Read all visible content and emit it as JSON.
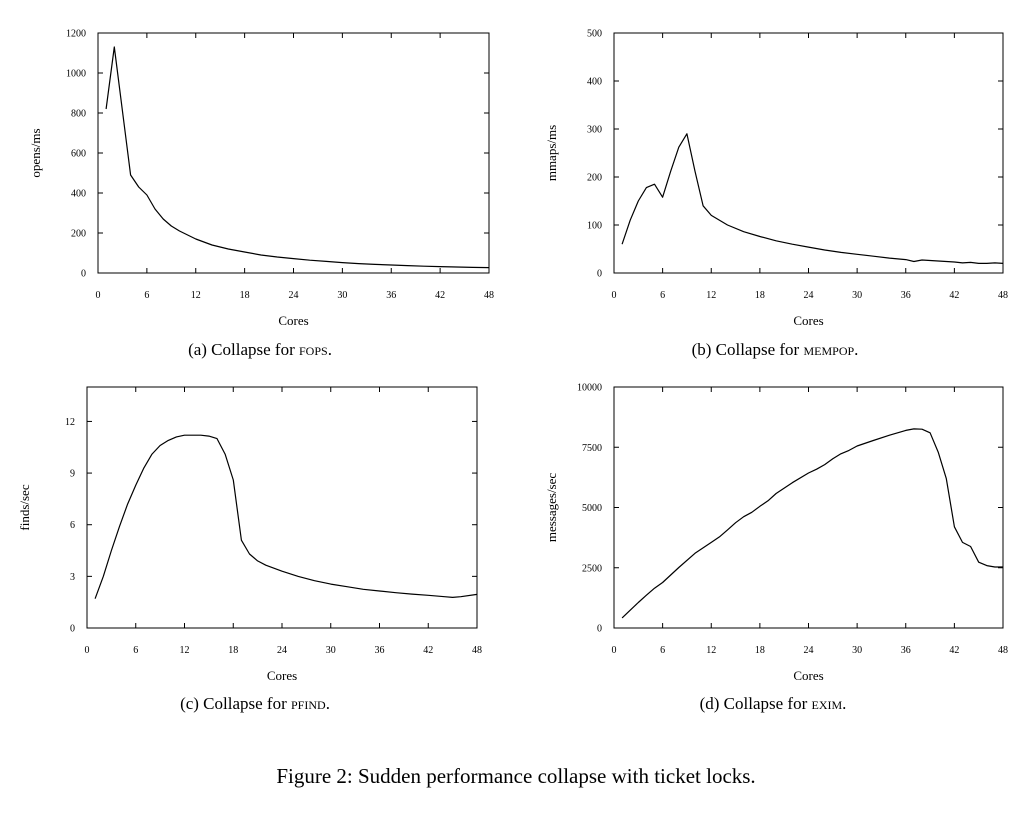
{
  "figure_caption": "Figure 2: Sudden performance collapse with ticket locks.",
  "chart_data": [
    {
      "type": "line",
      "caption_prefix": "(a)  Collapse for ",
      "caption_name": "fops",
      "caption_suffix": ".",
      "xlabel": "Cores",
      "ylabel": "opens/ms",
      "xlim": [
        0,
        48
      ],
      "ylim": [
        0,
        1200
      ],
      "xticks": [
        0,
        6,
        12,
        18,
        24,
        30,
        36,
        42,
        48
      ],
      "yticks": [
        0,
        200,
        400,
        600,
        800,
        1000,
        1200
      ],
      "series": [
        {
          "x": [
            1,
            2,
            4,
            5,
            6,
            7,
            8,
            9,
            10,
            12,
            14,
            16,
            18,
            20,
            22,
            24,
            26,
            28,
            30,
            32,
            34,
            36,
            38,
            40,
            42,
            44,
            46,
            48
          ],
          "y": [
            820,
            1130,
            490,
            430,
            390,
            320,
            270,
            235,
            210,
            170,
            140,
            120,
            105,
            90,
            80,
            72,
            64,
            58,
            52,
            47,
            43,
            40,
            37,
            34,
            32,
            30,
            28,
            27
          ]
        }
      ]
    },
    {
      "type": "line",
      "caption_prefix": "(b)  Collapse for ",
      "caption_name": "mempop",
      "caption_suffix": ".",
      "xlabel": "Cores",
      "ylabel": "mmaps/ms",
      "xlim": [
        0,
        48
      ],
      "ylim": [
        0,
        500
      ],
      "xticks": [
        0,
        6,
        12,
        18,
        24,
        30,
        36,
        42,
        48
      ],
      "yticks": [
        0,
        100,
        200,
        300,
        400,
        500
      ],
      "series": [
        {
          "x": [
            1,
            2,
            3,
            4,
            5,
            6,
            7,
            8,
            9,
            10,
            11,
            12,
            14,
            16,
            18,
            20,
            22,
            24,
            26,
            28,
            30,
            32,
            34,
            36,
            37,
            38,
            40,
            42,
            43,
            44,
            45,
            46,
            47,
            48
          ],
          "y": [
            60,
            110,
            150,
            178,
            185,
            158,
            212,
            262,
            290,
            212,
            140,
            120,
            100,
            86,
            76,
            67,
            60,
            54,
            48,
            43,
            39,
            35,
            31,
            28,
            24,
            27,
            25,
            23,
            21,
            22,
            20,
            20,
            21,
            20
          ]
        }
      ]
    },
    {
      "type": "line",
      "caption_prefix": "(c)  Collapse for ",
      "caption_name": "pfind",
      "caption_suffix": ".",
      "xlabel": "Cores",
      "ylabel": "finds/sec",
      "xlim": [
        0,
        48
      ],
      "ylim": [
        0,
        14
      ],
      "xticks": [
        0,
        6,
        12,
        18,
        24,
        30,
        36,
        42,
        48
      ],
      "yticks": [
        0,
        3,
        6,
        9,
        12
      ],
      "series": [
        {
          "x": [
            1,
            2,
            3,
            4,
            5,
            6,
            7,
            8,
            9,
            10,
            11,
            12,
            13,
            14,
            15,
            16,
            17,
            18,
            19,
            20,
            21,
            22,
            24,
            26,
            28,
            30,
            32,
            34,
            36,
            38,
            40,
            42,
            44,
            45,
            46,
            48
          ],
          "y": [
            1.7,
            3.0,
            4.5,
            5.9,
            7.2,
            8.3,
            9.3,
            10.1,
            10.6,
            10.9,
            11.1,
            11.2,
            11.2,
            11.2,
            11.15,
            11.0,
            10.1,
            8.6,
            5.1,
            4.3,
            3.9,
            3.65,
            3.3,
            3.0,
            2.75,
            2.55,
            2.4,
            2.25,
            2.15,
            2.05,
            1.97,
            1.9,
            1.82,
            1.78,
            1.82,
            1.95
          ]
        }
      ]
    },
    {
      "type": "line",
      "caption_prefix": "(d)  Collapse for ",
      "caption_name": "exim",
      "caption_suffix": ".",
      "xlabel": "Cores",
      "ylabel": "messages/sec",
      "xlim": [
        0,
        48
      ],
      "ylim": [
        0,
        10000
      ],
      "xticks": [
        0,
        6,
        12,
        18,
        24,
        30,
        36,
        42,
        48
      ],
      "yticks": [
        0,
        2500,
        5000,
        7500,
        10000
      ],
      "series": [
        {
          "x": [
            1,
            2,
            3,
            4,
            5,
            6,
            7,
            8,
            10,
            12,
            13,
            14,
            15,
            16,
            17,
            18,
            19,
            20,
            22,
            24,
            25,
            26,
            27,
            28,
            29,
            30,
            32,
            34,
            36,
            37,
            38,
            39,
            40,
            41,
            42,
            43,
            44,
            45,
            46,
            47,
            48
          ],
          "y": [
            420,
            740,
            1060,
            1360,
            1650,
            1890,
            2200,
            2510,
            3100,
            3550,
            3780,
            4070,
            4370,
            4620,
            4800,
            5050,
            5280,
            5580,
            6030,
            6430,
            6590,
            6780,
            7020,
            7230,
            7370,
            7550,
            7780,
            8000,
            8200,
            8260,
            8250,
            8100,
            7300,
            6200,
            4200,
            3550,
            3380,
            2730,
            2590,
            2530,
            2530
          ]
        }
      ]
    }
  ]
}
